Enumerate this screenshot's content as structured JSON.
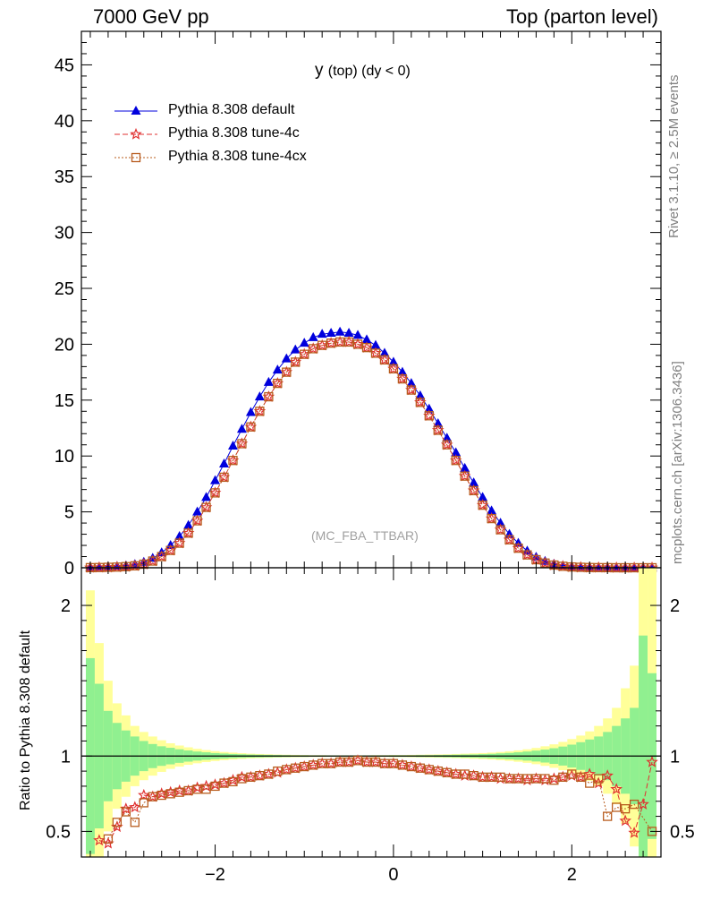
{
  "header": {
    "left": "7000 GeV pp",
    "right": "Top (parton level)"
  },
  "side_labels": {
    "rivet": "Rivet 3.1.10, ≥ 2.5M events",
    "mcplots": "mcplots.cern.ch [arXiv:1306.3436]"
  },
  "colors": {
    "default": "#0000dd",
    "tune4c": "#e03030",
    "tune4cx": "#b85c1e",
    "band_green": "#90f090",
    "band_yellow": "#ffff99"
  },
  "chart_data": [
    {
      "type": "line",
      "title_main": "y",
      "title_sub": "(top) (dy < 0)",
      "annotation": "(MC_FBA_TTBAR)",
      "xlim": [
        -3.5,
        3.0
      ],
      "ylim": [
        0,
        48
      ],
      "yticks": [
        0,
        5,
        10,
        15,
        20,
        25,
        30,
        35,
        40,
        45
      ],
      "x": [
        -3.4,
        -3.3,
        -3.2,
        -3.1,
        -3.0,
        -2.9,
        -2.8,
        -2.7,
        -2.6,
        -2.5,
        -2.4,
        -2.3,
        -2.2,
        -2.1,
        -2.0,
        -1.9,
        -1.8,
        -1.7,
        -1.6,
        -1.5,
        -1.4,
        -1.3,
        -1.2,
        -1.1,
        -1.0,
        -0.9,
        -0.8,
        -0.7,
        -0.6,
        -0.5,
        -0.4,
        -0.3,
        -0.2,
        -0.1,
        0.0,
        0.1,
        0.2,
        0.3,
        0.4,
        0.5,
        0.6,
        0.7,
        0.8,
        0.9,
        1.0,
        1.1,
        1.2,
        1.3,
        1.4,
        1.5,
        1.6,
        1.7,
        1.8,
        1.9,
        2.0,
        2.1,
        2.2,
        2.3,
        2.4,
        2.5,
        2.6,
        2.7,
        2.8,
        2.9
      ],
      "series": [
        {
          "name": "Pythia 8.308 default",
          "marker": "triangle",
          "values": [
            0.03,
            0.05,
            0.08,
            0.12,
            0.18,
            0.3,
            0.5,
            0.85,
            1.35,
            2.0,
            2.8,
            3.8,
            5.0,
            6.3,
            7.8,
            9.3,
            10.9,
            12.4,
            13.9,
            15.3,
            16.6,
            17.7,
            18.7,
            19.5,
            20.1,
            20.6,
            20.9,
            21.0,
            21.1,
            21.0,
            20.8,
            20.4,
            19.9,
            19.2,
            18.4,
            17.5,
            16.5,
            15.4,
            14.2,
            12.9,
            11.6,
            10.3,
            8.9,
            7.6,
            6.3,
            5.1,
            4.0,
            3.0,
            2.2,
            1.5,
            0.95,
            0.58,
            0.33,
            0.18,
            0.1,
            0.05,
            0.03,
            0.02,
            0.01,
            0.01,
            0.0,
            0.0,
            0.0,
            0.0
          ]
        },
        {
          "name": "Pythia 8.308 tune-4c",
          "marker": "star",
          "values": [
            0.01,
            0.02,
            0.04,
            0.06,
            0.1,
            0.17,
            0.32,
            0.6,
            1.0,
            1.55,
            2.2,
            3.1,
            4.2,
            5.4,
            6.7,
            8.1,
            9.6,
            11.1,
            12.6,
            14.0,
            15.3,
            16.5,
            17.5,
            18.4,
            19.1,
            19.6,
            19.9,
            20.1,
            20.2,
            20.2,
            20.0,
            19.7,
            19.2,
            18.6,
            17.8,
            16.9,
            15.9,
            14.8,
            13.6,
            12.3,
            11.0,
            9.6,
            8.2,
            6.9,
            5.6,
            4.4,
            3.4,
            2.5,
            1.75,
            1.15,
            0.72,
            0.42,
            0.24,
            0.13,
            0.07,
            0.04,
            0.02,
            0.01,
            0.01,
            0.0,
            0.0,
            0.0,
            0.0,
            0.0
          ]
        },
        {
          "name": "Pythia 8.308 tune-4cx",
          "marker": "open-square",
          "values": [
            0.01,
            0.02,
            0.04,
            0.06,
            0.1,
            0.17,
            0.32,
            0.6,
            1.0,
            1.55,
            2.2,
            3.1,
            4.2,
            5.4,
            6.7,
            8.1,
            9.6,
            11.1,
            12.6,
            14.0,
            15.3,
            16.5,
            17.5,
            18.4,
            19.1,
            19.6,
            19.9,
            20.1,
            20.2,
            20.2,
            20.0,
            19.7,
            19.2,
            18.6,
            17.8,
            16.9,
            15.9,
            14.8,
            13.6,
            12.3,
            11.0,
            9.6,
            8.2,
            6.9,
            5.6,
            4.4,
            3.4,
            2.5,
            1.75,
            1.15,
            0.72,
            0.42,
            0.24,
            0.13,
            0.07,
            0.04,
            0.02,
            0.01,
            0.01,
            0.0,
            0.0,
            0.0,
            0.0,
            0.0
          ]
        }
      ]
    },
    {
      "type": "line",
      "ylabel": "Ratio to Pythia 8.308 default",
      "xlim": [
        -3.5,
        3.0
      ],
      "ylim": [
        0.33,
        2.25
      ],
      "yticks": [
        0.5,
        1,
        2
      ],
      "ytick_labels": [
        "0.5",
        "1",
        "2"
      ],
      "xticks": [
        -2,
        0,
        2
      ],
      "xtick_labels": [
        "−2",
        "0",
        "2"
      ],
      "x": [
        -3.4,
        -3.3,
        -3.2,
        -3.1,
        -3.0,
        -2.9,
        -2.8,
        -2.7,
        -2.6,
        -2.5,
        -2.4,
        -2.3,
        -2.2,
        -2.1,
        -2.0,
        -1.9,
        -1.8,
        -1.7,
        -1.6,
        -1.5,
        -1.4,
        -1.3,
        -1.2,
        -1.1,
        -1.0,
        -0.9,
        -0.8,
        -0.7,
        -0.6,
        -0.5,
        -0.4,
        -0.3,
        -0.2,
        -0.1,
        0.0,
        0.1,
        0.2,
        0.3,
        0.4,
        0.5,
        0.6,
        0.7,
        0.8,
        0.9,
        1.0,
        1.1,
        1.2,
        1.3,
        1.4,
        1.5,
        1.6,
        1.7,
        1.8,
        1.9,
        2.0,
        2.1,
        2.2,
        2.3,
        2.4,
        2.5,
        2.6,
        2.7,
        2.8,
        2.9
      ],
      "band_green": [
        0.65,
        0.48,
        0.3,
        0.22,
        0.17,
        0.13,
        0.1,
        0.08,
        0.065,
        0.055,
        0.045,
        0.037,
        0.03,
        0.025,
        0.02,
        0.017,
        0.014,
        0.012,
        0.01,
        0.009,
        0.008,
        0.007,
        0.006,
        0.005,
        0.005,
        0.004,
        0.004,
        0.004,
        0.004,
        0.004,
        0.004,
        0.004,
        0.004,
        0.004,
        0.005,
        0.005,
        0.005,
        0.006,
        0.006,
        0.007,
        0.008,
        0.009,
        0.01,
        0.011,
        0.013,
        0.015,
        0.018,
        0.021,
        0.025,
        0.03,
        0.036,
        0.043,
        0.052,
        0.063,
        0.076,
        0.092,
        0.11,
        0.13,
        0.16,
        0.2,
        0.25,
        0.32,
        0.8,
        0.55
      ],
      "band_yellow": [
        1.1,
        0.75,
        0.5,
        0.35,
        0.27,
        0.2,
        0.16,
        0.13,
        0.105,
        0.085,
        0.07,
        0.058,
        0.048,
        0.04,
        0.033,
        0.027,
        0.023,
        0.019,
        0.016,
        0.014,
        0.012,
        0.01,
        0.009,
        0.008,
        0.007,
        0.006,
        0.006,
        0.005,
        0.005,
        0.005,
        0.005,
        0.005,
        0.006,
        0.006,
        0.007,
        0.007,
        0.008,
        0.009,
        0.01,
        0.011,
        0.012,
        0.014,
        0.016,
        0.018,
        0.02,
        0.023,
        0.027,
        0.032,
        0.038,
        0.045,
        0.054,
        0.065,
        0.078,
        0.094,
        0.113,
        0.136,
        0.164,
        0.2,
        0.25,
        0.32,
        0.45,
        0.6,
        1.3,
        1.3
      ],
      "series": [
        {
          "name": "Pythia 8.308 tune-4c",
          "marker": "star",
          "values": [
            null,
            0.44,
            0.42,
            0.53,
            0.65,
            0.66,
            0.74,
            0.73,
            0.75,
            0.76,
            0.77,
            0.77,
            0.79,
            0.8,
            0.81,
            0.82,
            0.84,
            0.86,
            0.86,
            0.87,
            0.88,
            0.89,
            0.91,
            0.92,
            0.93,
            0.94,
            0.95,
            0.95,
            0.96,
            0.96,
            0.97,
            0.96,
            0.96,
            0.95,
            0.95,
            0.94,
            0.93,
            0.92,
            0.91,
            0.9,
            0.89,
            0.88,
            0.87,
            0.87,
            0.86,
            0.86,
            0.85,
            0.85,
            0.85,
            0.84,
            0.85,
            0.84,
            0.85,
            0.86,
            0.87,
            0.86,
            0.88,
            0.82,
            0.87,
            0.78,
            0.57,
            0.49,
            0.68,
            0.96
          ]
        },
        {
          "name": "Pythia 8.308 tune-4cx",
          "marker": "open-square",
          "values": [
            null,
            null,
            0.45,
            0.56,
            0.63,
            0.56,
            0.69,
            0.73,
            0.74,
            0.75,
            0.76,
            0.77,
            0.78,
            0.78,
            0.8,
            0.82,
            0.83,
            0.85,
            0.86,
            0.87,
            0.88,
            0.9,
            0.91,
            0.92,
            0.93,
            0.94,
            0.95,
            0.95,
            0.96,
            0.96,
            0.97,
            0.96,
            0.96,
            0.95,
            0.95,
            0.94,
            0.93,
            0.92,
            0.91,
            0.9,
            0.89,
            0.88,
            0.88,
            0.87,
            0.86,
            0.86,
            0.86,
            0.85,
            0.85,
            0.85,
            0.85,
            0.85,
            0.84,
            0.86,
            0.88,
            0.86,
            0.82,
            0.85,
            0.6,
            0.66,
            0.65,
            0.68,
            null,
            0.5
          ]
        }
      ]
    }
  ]
}
